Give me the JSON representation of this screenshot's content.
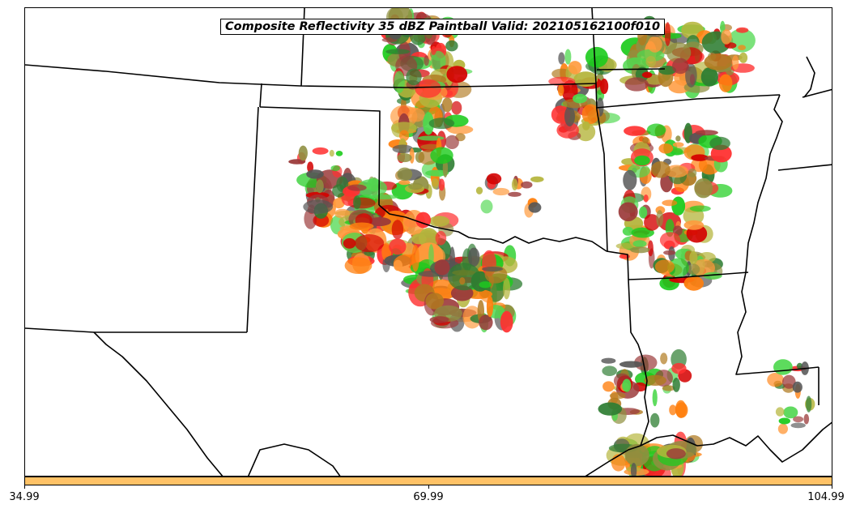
{
  "title": "Composite Reflectivity 35 dBZ Paintball Valid: 202105162100f010",
  "colorbar": {
    "color": "#ffc266",
    "ticks": [
      "34.99",
      "69.99",
      "104.99"
    ]
  },
  "map": {
    "region": "Southern Plains / Lower Mississippi Valley",
    "boundary_color": "#000000",
    "paintball_member_colors": [
      "#d40000",
      "#ff3030",
      "#ff7f0e",
      "#ff9a3c",
      "#1ecb1e",
      "#4fd84f",
      "#2e7d32",
      "#9b3a3a",
      "#b07a20",
      "#b5b53c",
      "#8f8f40",
      "#555555"
    ]
  }
}
